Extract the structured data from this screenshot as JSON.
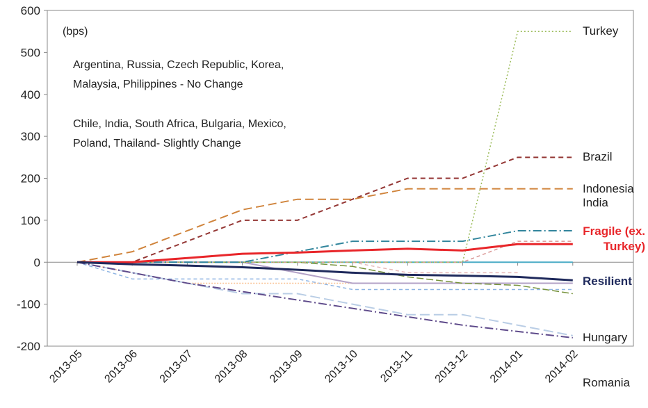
{
  "chart_data": {
    "type": "line",
    "categories": [
      "2013-05",
      "2013-06",
      "2013-07",
      "2013-08",
      "2013-09",
      "2013-10",
      "2013-11",
      "2013-12",
      "2014-01",
      "2014-02"
    ],
    "ylim": [
      -200,
      600
    ],
    "yticks": [
      -200,
      -100,
      0,
      100,
      200,
      300,
      400,
      500,
      600
    ],
    "annotations": [
      "(bps)",
      "Argentina, Russia, Czech Republic, Korea,",
      "Malaysia, Philippines - No Change",
      "Chile, India, South Africa, Bulgaria, Mexico,",
      "Poland, Thailand- Slightly Change"
    ],
    "series": [
      {
        "color": "#4bacc6",
        "values": [
          0,
          0,
          0,
          0,
          0,
          0,
          0,
          0,
          0,
          0
        ]
      },
      {
        "color": "#8eb4e3",
        "values": [
          0,
          -40,
          -40,
          -40,
          -40,
          -65,
          -65,
          -65,
          -65,
          -65
        ]
      },
      {
        "color": "#fac090",
        "values": [
          0,
          -25,
          -50,
          -50,
          -50,
          -50,
          -50,
          -50,
          -50,
          -50
        ]
      },
      {
        "color": "#b3a2c7",
        "values": [
          0,
          0,
          0,
          0,
          -25,
          -50,
          -50,
          -50,
          -50,
          -50
        ]
      },
      {
        "color": "#77933c",
        "values": [
          0,
          0,
          0,
          0,
          0,
          -10,
          -35,
          -50,
          -55,
          -75
        ]
      },
      {
        "color": "#e6b9b8",
        "values": [
          0,
          0,
          0,
          0,
          0,
          0,
          -25,
          -25,
          -25,
          null
        ]
      },
      {
        "color": "#d99694",
        "values": [
          0,
          0,
          0,
          0,
          0,
          0,
          0,
          0,
          50,
          50
        ]
      },
      {
        "name": "Turkey",
        "color": "#9bbb59",
        "values": [
          0,
          0,
          0,
          0,
          0,
          0,
          0,
          0,
          550,
          550
        ]
      },
      {
        "name": "Brazil",
        "color": "#943634",
        "values": [
          0,
          0,
          50,
          100,
          100,
          150,
          200,
          200,
          250,
          250
        ]
      },
      {
        "name": "Indonesia",
        "color": "#d0843c",
        "values": [
          0,
          25,
          75,
          125,
          150,
          150,
          175,
          175,
          175,
          175
        ]
      },
      {
        "name": "India",
        "color": "#31859c",
        "values": [
          0,
          0,
          0,
          0,
          25,
          50,
          50,
          50,
          75,
          75
        ]
      },
      {
        "name": "Romania",
        "color": "#b9cde5",
        "values": [
          0,
          -25,
          -50,
          -75,
          -75,
          -100,
          -125,
          -125,
          -150,
          -175
        ]
      },
      {
        "name": "Hungary",
        "color": "#5f4b8b",
        "values": [
          0,
          -25,
          -50,
          -70,
          -90,
          -110,
          -130,
          -150,
          -165,
          -180
        ]
      },
      {
        "name": "Fragile (ex. Turkey)",
        "color": "#e8262a",
        "values": [
          0,
          0,
          10,
          20,
          23,
          28,
          32,
          28,
          43,
          43
        ]
      },
      {
        "name": "Resilient",
        "color": "#1f2a5c",
        "values": [
          0,
          -5,
          -8,
          -12,
          -18,
          -25,
          -30,
          -32,
          -35,
          -43
        ]
      }
    ]
  }
}
